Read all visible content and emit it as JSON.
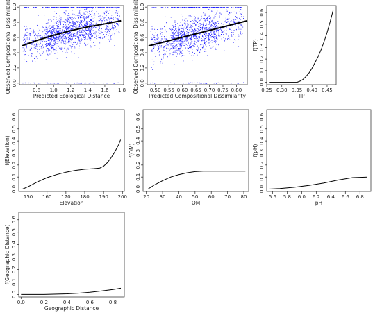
{
  "chart_data": [
    {
      "id": "p1",
      "type": "scatter",
      "xlabel": "Predicted Ecological Distance",
      "ylabel": "Observed Compositional Dissimilarity",
      "xlim": [
        0.6,
        1.82
      ],
      "ylim": [
        -0.02,
        1.02
      ],
      "xticks": [
        0.8,
        1.0,
        1.2,
        1.4,
        1.6,
        1.8
      ],
      "xtick_labels": [
        "0.8",
        "1.0",
        "1.2",
        "1.4",
        "1.6",
        "1.8"
      ],
      "yticks": [
        0.0,
        0.2,
        0.4,
        0.6,
        0.8,
        1.0
      ],
      "ytick_labels": [
        "0.0",
        "0.2",
        "0.4",
        "0.6",
        "0.8",
        "1.0"
      ],
      "point_color": "#1a1aff",
      "fit_line": {
        "x": [
          0.63,
          0.8,
          1.0,
          1.2,
          1.4,
          1.6,
          1.79
        ],
        "y": [
          0.49,
          0.56,
          0.63,
          0.69,
          0.74,
          0.78,
          0.82
        ]
      }
    },
    {
      "id": "p2",
      "type": "scatter",
      "xlabel": "Predicted Compositional Dissimilarity",
      "ylabel": "Observed Compositional Dissimilarity",
      "xlim": [
        0.47,
        0.84
      ],
      "ylim": [
        -0.02,
        1.02
      ],
      "xticks": [
        0.5,
        0.55,
        0.6,
        0.65,
        0.7,
        0.75,
        0.8
      ],
      "xtick_labels": [
        "0.50",
        "0.55",
        "0.60",
        "0.65",
        "0.70",
        "0.75",
        "0.80"
      ],
      "yticks": [
        0.0,
        0.2,
        0.4,
        0.6,
        0.8,
        1.0
      ],
      "ytick_labels": [
        "0.0",
        "0.2",
        "0.4",
        "0.6",
        "0.8",
        "1.0"
      ],
      "point_color": "#1a1aff",
      "fit_line": {
        "x": [
          0.475,
          0.84
        ],
        "y": [
          0.49,
          0.82
        ]
      }
    },
    {
      "id": "p3",
      "type": "line",
      "xlabel": "TP",
      "ylabel": "f(TP)",
      "xlim": [
        0.25,
        0.48
      ],
      "ylim": [
        -0.02,
        0.66
      ],
      "xticks": [
        0.25,
        0.3,
        0.35,
        0.4,
        0.45
      ],
      "xtick_labels": [
        "0.25",
        "0.30",
        "0.35",
        "0.40",
        "0.45"
      ],
      "yticks": [
        0.0,
        0.1,
        0.2,
        0.3,
        0.4,
        0.5,
        0.6
      ],
      "ytick_labels": [
        "0.0",
        "0.1",
        "0.2",
        "0.3",
        "0.4",
        "0.5",
        "0.6"
      ],
      "x": [
        0.26,
        0.3,
        0.35,
        0.36,
        0.37,
        0.38,
        0.39,
        0.4,
        0.41,
        0.42,
        0.43,
        0.44,
        0.45,
        0.46,
        0.47
      ],
      "y": [
        0.0,
        0.0,
        0.0,
        0.01,
        0.025,
        0.05,
        0.08,
        0.12,
        0.17,
        0.22,
        0.28,
        0.35,
        0.43,
        0.52,
        0.62
      ]
    },
    {
      "id": "p4",
      "type": "line",
      "xlabel": "Elevation",
      "ylabel": "f(Elevation)",
      "xlim": [
        145,
        201
      ],
      "ylim": [
        -0.02,
        0.66
      ],
      "xticks": [
        150,
        160,
        170,
        180,
        190,
        200
      ],
      "xtick_labels": [
        "150",
        "160",
        "170",
        "180",
        "190",
        "200"
      ],
      "yticks": [
        0.0,
        0.1,
        0.2,
        0.3,
        0.4,
        0.5,
        0.6
      ],
      "ytick_labels": [
        "0.0",
        "0.1",
        "0.2",
        "0.3",
        "0.4",
        "0.5",
        "0.6"
      ],
      "x": [
        147,
        150,
        155,
        160,
        165,
        170,
        175,
        180,
        185,
        188,
        190,
        192,
        194,
        196,
        198,
        199
      ],
      "y": [
        0.0,
        0.02,
        0.06,
        0.095,
        0.12,
        0.14,
        0.155,
        0.165,
        0.17,
        0.175,
        0.19,
        0.22,
        0.26,
        0.31,
        0.37,
        0.41
      ]
    },
    {
      "id": "p5",
      "type": "line",
      "xlabel": "OM",
      "ylabel": "f(OM)",
      "xlim": [
        18,
        83
      ],
      "ylim": [
        -0.02,
        0.66
      ],
      "xticks": [
        20,
        30,
        40,
        50,
        60,
        70,
        80
      ],
      "xtick_labels": [
        "20",
        "30",
        "40",
        "50",
        "60",
        "70",
        "80"
      ],
      "yticks": [
        0.0,
        0.1,
        0.2,
        0.3,
        0.4,
        0.5,
        0.6
      ],
      "ytick_labels": [
        "0.0",
        "0.1",
        "0.2",
        "0.3",
        "0.4",
        "0.5",
        "0.6"
      ],
      "x": [
        21,
        25,
        30,
        35,
        40,
        45,
        50,
        55,
        60,
        70,
        81
      ],
      "y": [
        0.0,
        0.035,
        0.07,
        0.1,
        0.12,
        0.135,
        0.145,
        0.148,
        0.148,
        0.148,
        0.148
      ]
    },
    {
      "id": "p6",
      "type": "line",
      "xlabel": "pH",
      "ylabel": "f(pH)",
      "xlim": [
        5.52,
        6.95
      ],
      "ylim": [
        -0.02,
        0.66
      ],
      "xticks": [
        5.6,
        5.8,
        6.0,
        6.2,
        6.4,
        6.6,
        6.8
      ],
      "xtick_labels": [
        "5.6",
        "5.8",
        "6.0",
        "6.2",
        "6.4",
        "6.6",
        "6.8"
      ],
      "yticks": [
        0.0,
        0.1,
        0.2,
        0.3,
        0.4,
        0.5,
        0.6
      ],
      "ytick_labels": [
        "0.0",
        "0.1",
        "0.2",
        "0.3",
        "0.4",
        "0.5",
        "0.6"
      ],
      "x": [
        5.55,
        5.7,
        5.9,
        6.1,
        6.3,
        6.5,
        6.7,
        6.9
      ],
      "y": [
        0.0,
        0.005,
        0.015,
        0.03,
        0.05,
        0.075,
        0.095,
        0.1
      ]
    },
    {
      "id": "p7",
      "type": "line",
      "xlabel": "Geographic Distance",
      "ylabel": "f(Geographic Distance)",
      "xlim": [
        -0.02,
        0.9
      ],
      "ylim": [
        -0.02,
        0.66
      ],
      "xticks": [
        0.0,
        0.2,
        0.4,
        0.6,
        0.8
      ],
      "xtick_labels": [
        "0.0",
        "0.2",
        "0.4",
        "0.6",
        "0.8"
      ],
      "yticks": [
        0.0,
        0.1,
        0.2,
        0.3,
        0.4,
        0.5,
        0.6
      ],
      "ytick_labels": [
        "0.0",
        "0.1",
        "0.2",
        "0.3",
        "0.4",
        "0.5",
        "0.6"
      ],
      "x": [
        0.0,
        0.2,
        0.4,
        0.5,
        0.6,
        0.7,
        0.8,
        0.87
      ],
      "y": [
        0.0,
        0.0,
        0.005,
        0.01,
        0.018,
        0.028,
        0.04,
        0.05
      ]
    }
  ]
}
